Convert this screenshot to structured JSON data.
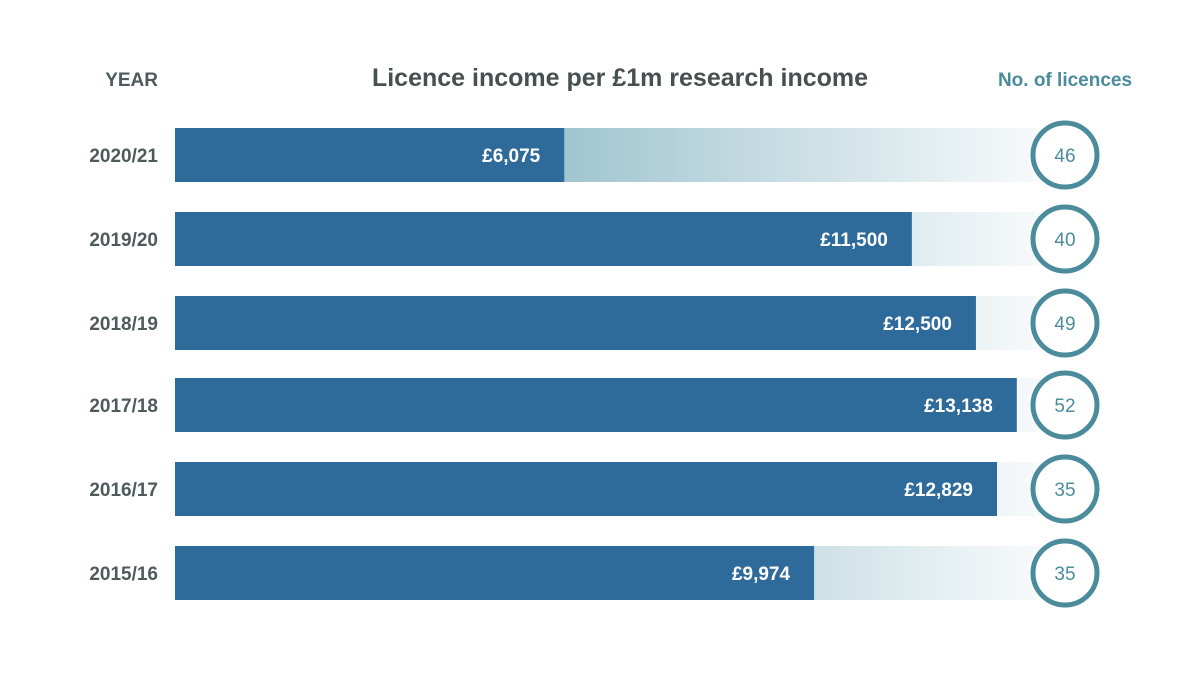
{
  "chart_data": {
    "type": "bar",
    "orientation": "horizontal",
    "title": "Licence income per £1m research income",
    "category_header": "YEAR",
    "secondary_header": "No. of licences",
    "categories": [
      "2020/21",
      "2019/20",
      "2018/19",
      "2017/18",
      "2016/17",
      "2015/16"
    ],
    "values": [
      6075,
      11500,
      12500,
      13138,
      12829,
      9974
    ],
    "value_labels": [
      "£6,075",
      "£11,500",
      "£12,500",
      "£13,138",
      "£12,829",
      "£9,974"
    ],
    "licences": [
      46,
      40,
      49,
      52,
      35,
      35
    ],
    "xlim": [
      0,
      13500
    ],
    "grid": false,
    "colors": {
      "bar": "#2e6a9a",
      "track_start": "#5a9aad",
      "track_end": "#f7fafb",
      "circle": "#4a8c9c",
      "year": "#4f5a5c"
    }
  }
}
